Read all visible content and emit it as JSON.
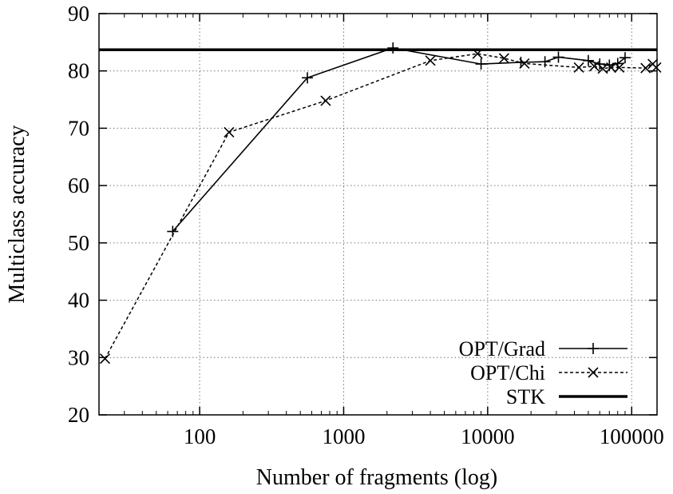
{
  "chart_data": {
    "type": "line",
    "title": "",
    "xlabel": "Number of fragments (log)",
    "ylabel": "Multiclass accuracy",
    "x_scale": "log",
    "xlim": [
      20,
      150000
    ],
    "ylim": [
      20,
      90
    ],
    "x_ticks": [
      100,
      1000,
      10000,
      100000
    ],
    "y_ticks": [
      20,
      30,
      40,
      50,
      60,
      70,
      80,
      90
    ],
    "grid": true,
    "legend_position": "bottom-right",
    "series": [
      {
        "name": "OPT/Grad",
        "style": "solid",
        "marker": "plus",
        "x": [
          65,
          560,
          2200,
          9000,
          17000,
          25000,
          31000,
          50000,
          60000,
          70000,
          80000,
          90000
        ],
        "y": [
          52,
          78.8,
          84,
          81.2,
          81.5,
          81.6,
          82.4,
          81.8,
          81.2,
          81,
          81.3,
          82.3
        ]
      },
      {
        "name": "OPT/Chi",
        "style": "dashed",
        "marker": "x",
        "x": [
          22,
          160,
          750,
          4000,
          8500,
          13000,
          18000,
          43000,
          55000,
          63000,
          72000,
          82000,
          125000,
          140000,
          148000
        ],
        "y": [
          29.8,
          69.3,
          74.8,
          81.8,
          83,
          82.2,
          81.3,
          80.6,
          80.8,
          80.4,
          80.6,
          80.6,
          80.5,
          81.2,
          80.6
        ]
      },
      {
        "name": "STK",
        "style": "thick-solid",
        "marker": "none",
        "x": [
          20,
          150000
        ],
        "y": [
          83.7,
          83.7
        ]
      }
    ]
  }
}
